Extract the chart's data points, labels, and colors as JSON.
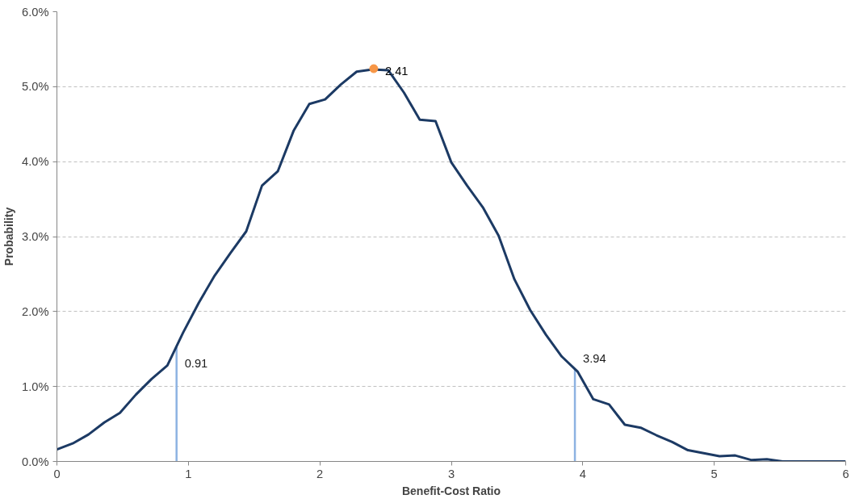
{
  "chart_data": {
    "type": "line",
    "xlabel": "Benefit-Cost Ratio",
    "ylabel": "Probability",
    "x": [
      0,
      0.12,
      0.24,
      0.36,
      0.48,
      0.6,
      0.72,
      0.84,
      0.96,
      1.08,
      1.2,
      1.32,
      1.44,
      1.56,
      1.68,
      1.8,
      1.92,
      2.04,
      2.16,
      2.28,
      2.4,
      2.52,
      2.64,
      2.76,
      2.88,
      3.0,
      3.12,
      3.24,
      3.36,
      3.48,
      3.6,
      3.72,
      3.84,
      3.96,
      4.08,
      4.2,
      4.32,
      4.44,
      4.56,
      4.68,
      4.8,
      4.92,
      5.04,
      5.16,
      5.28,
      5.4,
      5.52,
      5.64,
      5.76,
      5.88,
      6.0
    ],
    "series": [
      {
        "color": "#1c3a64",
        "values": [
          0.16,
          0.24,
          0.36,
          0.52,
          0.65,
          0.89,
          1.1,
          1.28,
          1.72,
          2.12,
          2.48,
          2.78,
          3.07,
          3.68,
          3.87,
          4.41,
          4.77,
          4.83,
          5.03,
          5.2,
          5.23,
          5.22,
          4.92,
          4.56,
          4.54,
          3.99,
          3.68,
          3.39,
          3.01,
          2.43,
          2.02,
          1.69,
          1.4,
          1.2,
          0.83,
          0.76,
          0.49,
          0.45,
          0.35,
          0.26,
          0.15,
          0.11,
          0.07,
          0.08,
          0.02,
          0.03,
          0,
          0,
          0,
          0,
          0
        ]
      },
      {
        "type": "scatter",
        "marker": "circle",
        "color": "#f79646",
        "x": [
          2.41
        ],
        "values": [
          5.24
        ]
      }
    ],
    "annotations": [
      {
        "text": "2.41",
        "x": 2.41,
        "y": 5.24
      }
    ],
    "ref_lines": [
      {
        "axis": "x",
        "value": 0.91,
        "label": "0.91",
        "color": "#8db3e2"
      },
      {
        "axis": "x",
        "value": 3.94,
        "label": "3.94",
        "color": "#8db3e2"
      }
    ],
    "xlim": [
      0,
      6
    ],
    "xticks": [
      0,
      1,
      2,
      3,
      4,
      5,
      6
    ],
    "ylim": [
      0,
      6
    ],
    "yticks": [
      {
        "value": 0,
        "label": "0.0%"
      },
      {
        "value": 1,
        "label": "1.0%"
      },
      {
        "value": 2,
        "label": "2.0%"
      },
      {
        "value": 3,
        "label": "3.0%"
      },
      {
        "value": 4,
        "label": "4.0%"
      },
      {
        "value": 5,
        "label": "5.0%"
      },
      {
        "value": 6,
        "label": "6.0%"
      }
    ],
    "grid": "y",
    "marker": "none",
    "line_style": "solid"
  }
}
